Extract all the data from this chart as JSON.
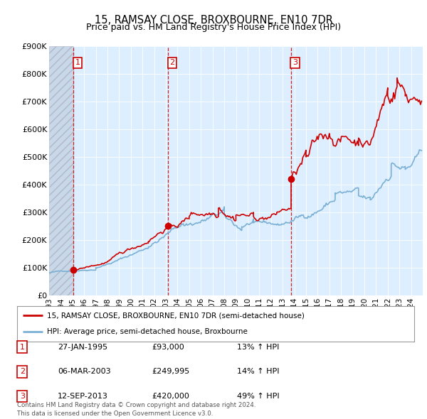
{
  "title": "15, RAMSAY CLOSE, BROXBOURNE, EN10 7DR",
  "subtitle": "Price paid vs. HM Land Registry's House Price Index (HPI)",
  "background_plot": "#ddeeff",
  "hatch_region_end_year": 1995.07,
  "sale_dates": [
    1995.07,
    2003.18,
    2013.71
  ],
  "sale_prices": [
    93000,
    249995,
    420000
  ],
  "sale_labels": [
    "1",
    "2",
    "3"
  ],
  "ylim": [
    0,
    900000
  ],
  "xlim_start": 1993.0,
  "xlim_end": 2025.0,
  "yticks": [
    0,
    100000,
    200000,
    300000,
    400000,
    500000,
    600000,
    700000,
    800000,
    900000
  ],
  "ytick_labels": [
    "£0",
    "£100K",
    "£200K",
    "£300K",
    "£400K",
    "£500K",
    "£600K",
    "£700K",
    "£800K",
    "£900K"
  ],
  "xtick_years": [
    1993,
    1994,
    1995,
    1996,
    1997,
    1998,
    1999,
    2000,
    2001,
    2002,
    2003,
    2004,
    2005,
    2006,
    2007,
    2008,
    2009,
    2010,
    2011,
    2012,
    2013,
    2014,
    2015,
    2016,
    2017,
    2018,
    2019,
    2020,
    2021,
    2022,
    2023,
    2024
  ],
  "red_line_color": "#cc0000",
  "blue_line_color": "#7ab0d4",
  "sale_marker_color": "#cc0000",
  "vline_color": "#cc0000",
  "legend_line1": "15, RAMSAY CLOSE, BROXBOURNE, EN10 7DR (semi-detached house)",
  "legend_line2": "HPI: Average price, semi-detached house, Broxbourne",
  "table_rows": [
    [
      "1",
      "27-JAN-1995",
      "£93,000",
      "13% ↑ HPI"
    ],
    [
      "2",
      "06-MAR-2003",
      "£249,995",
      "14% ↑ HPI"
    ],
    [
      "3",
      "12-SEP-2013",
      "£420,000",
      "49% ↑ HPI"
    ]
  ],
  "footer_text": "Contains HM Land Registry data © Crown copyright and database right 2024.\nThis data is licensed under the Open Government Licence v3.0."
}
